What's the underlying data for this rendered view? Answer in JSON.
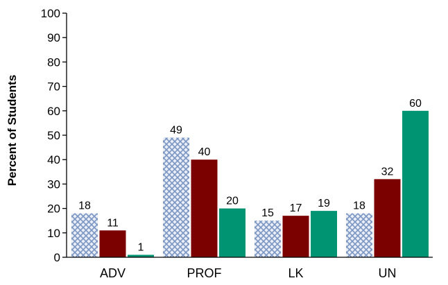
{
  "chart_data": {
    "type": "bar",
    "title": "",
    "xlabel": "",
    "ylabel": "Percent of Students",
    "ylim": [
      0,
      100
    ],
    "yticks": [
      0,
      10,
      20,
      30,
      40,
      50,
      60,
      70,
      80,
      90,
      100
    ],
    "categories": [
      "ADV",
      "PROF",
      "LK",
      "UN"
    ],
    "series": [
      {
        "values": [
          18,
          49,
          15,
          18
        ],
        "color": "#8fa8d0",
        "pattern": "crosshatch"
      },
      {
        "values": [
          11,
          40,
          17,
          32
        ],
        "color": "#7b0000"
      },
      {
        "values": [
          1,
          20,
          19,
          60
        ],
        "color": "#009473"
      }
    ],
    "grid": false,
    "legend": "none"
  }
}
